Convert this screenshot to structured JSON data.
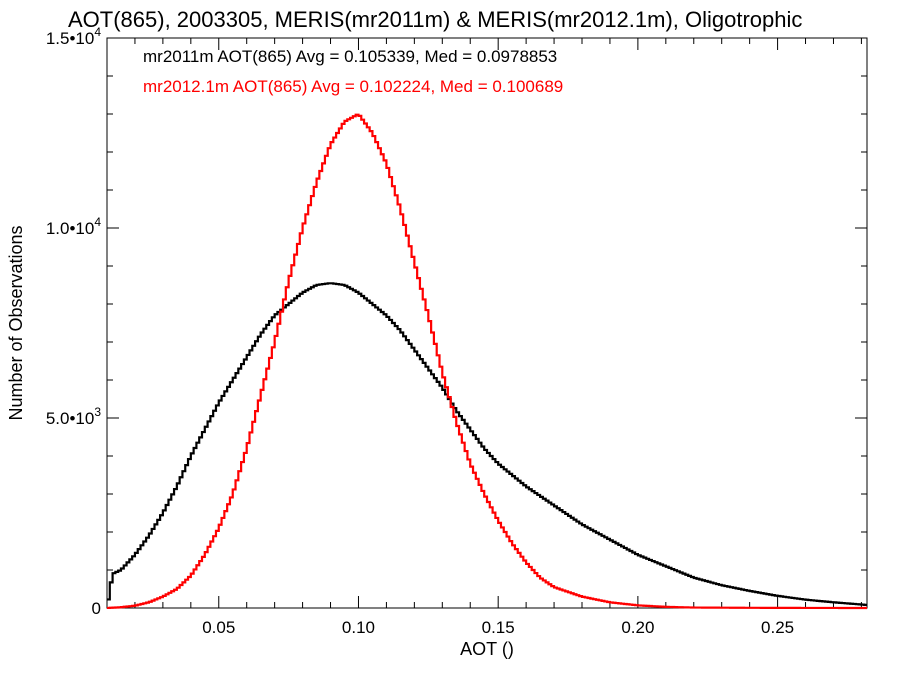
{
  "chart_data": {
    "type": "line",
    "title": "AOT(865), 2003305, MERIS(mr2011m) & MERIS(mr2012.1m), Oligotrophic",
    "xlabel": "AOT ()",
    "ylabel": "Number of Observations",
    "xlim": [
      0.01,
      0.282
    ],
    "ylim": [
      0,
      15000
    ],
    "x_ticks": [
      {
        "value": 0.05,
        "label": "0.05"
      },
      {
        "value": 0.1,
        "label": "0.10"
      },
      {
        "value": 0.15,
        "label": "0.15"
      },
      {
        "value": 0.2,
        "label": "0.20"
      },
      {
        "value": 0.25,
        "label": "0.25"
      }
    ],
    "y_ticks": [
      {
        "value": 0,
        "base": "0",
        "exp": ""
      },
      {
        "value": 5000,
        "base": "5.0•10",
        "exp": "3"
      },
      {
        "value": 10000,
        "base": "1.0•10",
        "exp": "4"
      },
      {
        "value": 15000,
        "base": "1.5•10",
        "exp": "4"
      }
    ],
    "grid": false,
    "legend_position": "top-left",
    "series": [
      {
        "legend": "mr2011m AOT(865) Avg = 0.105339, Med = 0.0978853",
        "color": "#000000",
        "x": [
          0.01,
          0.012,
          0.015,
          0.02,
          0.025,
          0.03,
          0.035,
          0.04,
          0.045,
          0.05,
          0.055,
          0.06,
          0.065,
          0.07,
          0.075,
          0.08,
          0.085,
          0.09,
          0.095,
          0.1,
          0.105,
          0.11,
          0.115,
          0.12,
          0.125,
          0.13,
          0.135,
          0.14,
          0.145,
          0.15,
          0.155,
          0.16,
          0.17,
          0.18,
          0.19,
          0.2,
          0.21,
          0.22,
          0.23,
          0.24,
          0.25,
          0.26,
          0.27,
          0.282
        ],
        "y": [
          0,
          900,
          1000,
          1400,
          1900,
          2500,
          3200,
          4000,
          4700,
          5400,
          6000,
          6600,
          7200,
          7700,
          8000,
          8300,
          8500,
          8550,
          8500,
          8300,
          8000,
          7700,
          7300,
          6800,
          6300,
          5800,
          5200,
          4700,
          4200,
          3800,
          3500,
          3200,
          2700,
          2200,
          1800,
          1400,
          1100,
          800,
          600,
          450,
          320,
          220,
          150,
          80
        ]
      },
      {
        "legend": "mr2012.1m AOT(865) Avg = 0.102224, Med = 0.100689",
        "color": "#ff0000",
        "x": [
          0.01,
          0.015,
          0.02,
          0.025,
          0.03,
          0.035,
          0.04,
          0.045,
          0.05,
          0.055,
          0.06,
          0.065,
          0.07,
          0.075,
          0.08,
          0.085,
          0.09,
          0.095,
          0.1,
          0.105,
          0.11,
          0.115,
          0.12,
          0.125,
          0.13,
          0.135,
          0.14,
          0.145,
          0.15,
          0.155,
          0.16,
          0.165,
          0.17,
          0.18,
          0.19,
          0.2,
          0.21,
          0.22,
          0.24,
          0.26,
          0.282
        ],
        "y": [
          0,
          20,
          60,
          150,
          300,
          500,
          850,
          1400,
          2100,
          3000,
          4200,
          5600,
          7000,
          8600,
          10000,
          11200,
          12200,
          12800,
          13000,
          12500,
          11700,
          10500,
          9100,
          7700,
          6200,
          4900,
          3800,
          3000,
          2300,
          1700,
          1200,
          800,
          550,
          300,
          150,
          70,
          30,
          12,
          5,
          2,
          0
        ]
      }
    ]
  }
}
